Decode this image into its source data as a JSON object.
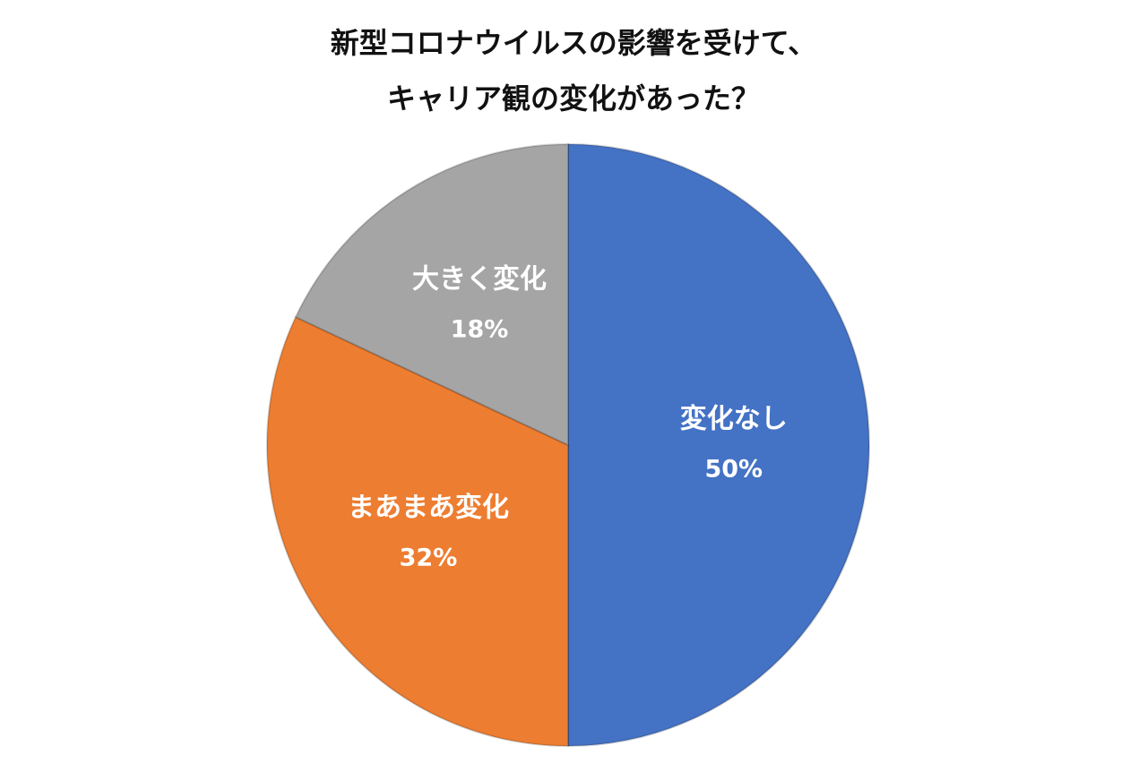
{
  "chart_data": {
    "type": "pie",
    "title": [
      "新型コロナウイルスの影響を受けて、",
      "キャリア観の変化があった？"
    ],
    "categories": [
      "変化なし",
      "まあまあ変化",
      "大きく変化"
    ],
    "values": [
      50,
      32,
      18
    ],
    "value_labels": [
      "50%",
      "32%",
      "18%"
    ],
    "colors": [
      "#4472c4",
      "#ed7d31",
      "#a5a5a5"
    ]
  }
}
